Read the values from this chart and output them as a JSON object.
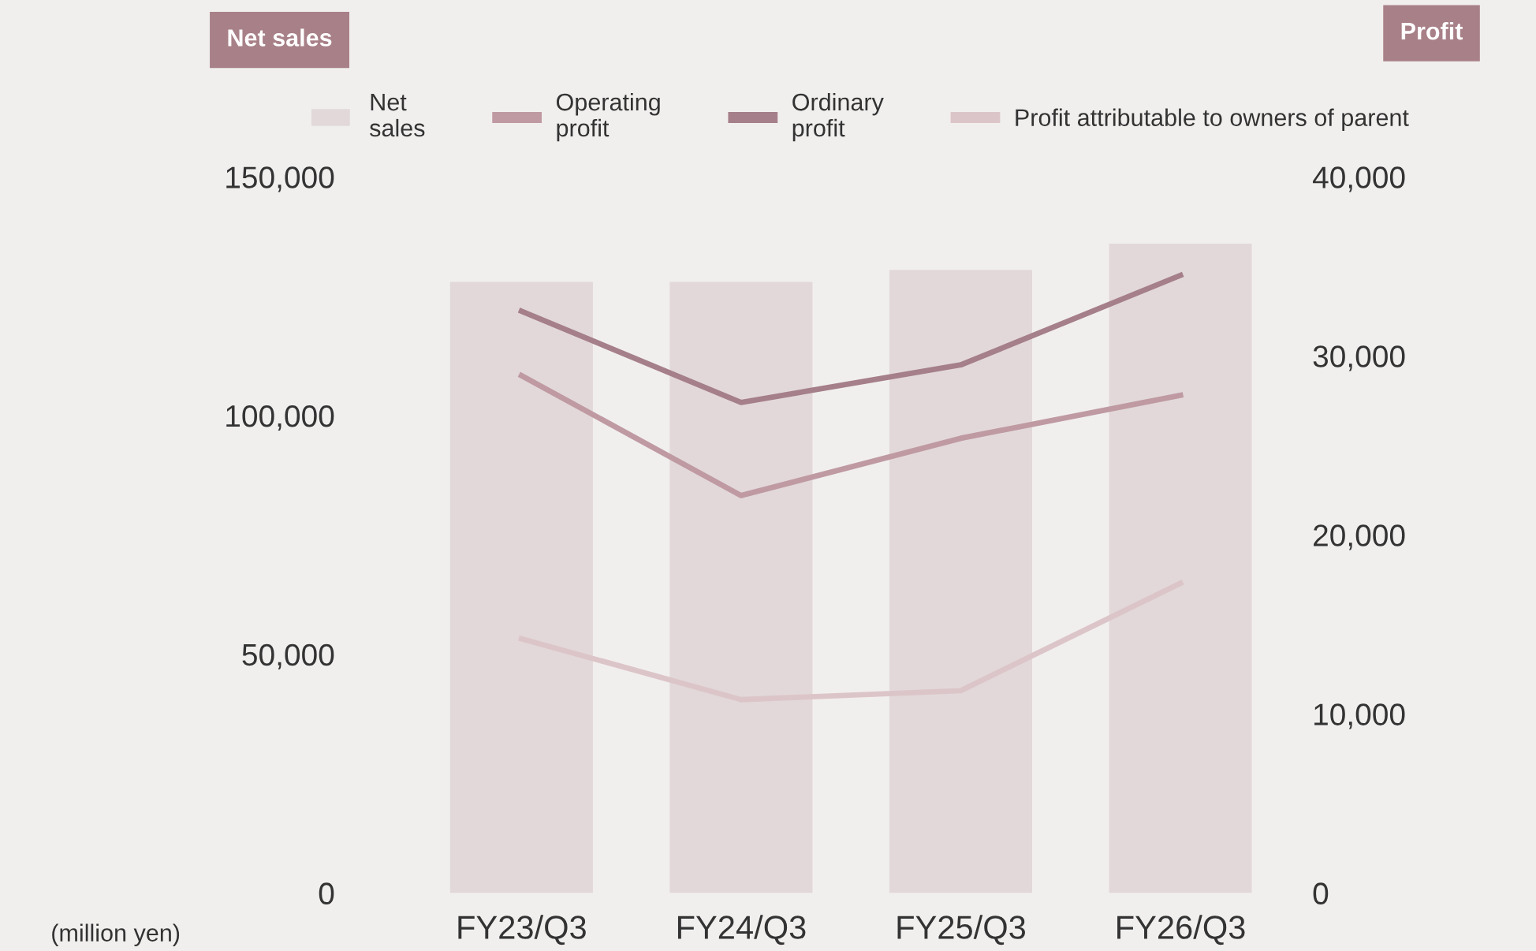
{
  "chart_data": {
    "type": "bar",
    "ylabel": "Net sales",
    "annotations": [
      "Profit",
      "(million yen)"
    ],
    "categories": [
      "FY23/Q3",
      "FY24/Q3",
      "FY25/Q3",
      "FY26/Q3"
    ],
    "series": [
      {
        "name": "Net\nsales",
        "color": "#e2d8d9",
        "values": [
          128000,
          128000,
          130500,
          136000
        ]
      },
      {
        "name": "Operating\nprofit",
        "type": "line",
        "axis": "y2",
        "color": "#bf9aa3",
        "values": [
          28900,
          22200,
          25400,
          27800
        ]
      },
      {
        "name": "Ordinary\nprofit",
        "type": "line",
        "axis": "y2",
        "color": "#a57f89",
        "values": [
          32500,
          27400,
          29500,
          34500
        ]
      },
      {
        "name": "Profit attributable to owners of parent",
        "type": "line",
        "axis": "y2",
        "color": "#dcc5c9",
        "values": [
          14200,
          10800,
          11300,
          17300
        ]
      }
    ],
    "ylim": [
      0,
      150000
    ],
    "yticks": [
      {
        "value": 0,
        "label": "0"
      },
      {
        "value": 50000,
        "label": "50,000"
      },
      {
        "value": 100000,
        "label": "100,000"
      },
      {
        "value": 150000,
        "label": "150,000"
      }
    ],
    "y2lim": [
      0,
      40000
    ],
    "y2ticks": [
      {
        "value": 0,
        "label": "0"
      },
      {
        "value": 10000,
        "label": "10,000"
      },
      {
        "value": 20000,
        "label": "20,000"
      },
      {
        "value": 30000,
        "label": "30,000"
      },
      {
        "value": 40000,
        "label": "40,000"
      }
    ],
    "legend": "top",
    "grid": false
  }
}
